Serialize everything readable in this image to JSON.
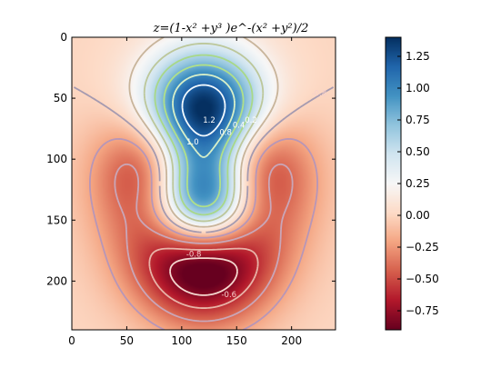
{
  "chart_data": {
    "type": "heatmap",
    "title": "z=(1-x² +y³ )e^-(x² +y²)/2",
    "xlabel": "",
    "ylabel": "",
    "grid": false,
    "x_range": [
      0,
      240
    ],
    "y_range": [
      240,
      0
    ],
    "x_ticks": [
      "0",
      "50",
      "100",
      "150",
      "200"
    ],
    "y_ticks": [
      "0",
      "50",
      "100",
      "150",
      "200"
    ],
    "colormap": "RdBu",
    "colorbar": {
      "range": [
        -0.9,
        1.4
      ],
      "ticks": [
        "1.25",
        "1.00",
        "0.75",
        "0.50",
        "0.25",
        "0.00",
        "−0.25",
        "−0.50",
        "−0.75"
      ],
      "tick_values": [
        1.25,
        1.0,
        0.75,
        0.5,
        0.25,
        0.0,
        -0.25,
        -0.5,
        -0.75
      ]
    },
    "function": "z = (1 - x^2 + y^3) * exp(-(x^2 + y^2)/2), x,y in [-3,3] mapped to 0..240 pixels",
    "contour_levels": [
      -0.8,
      -0.6,
      -0.4,
      -0.2,
      0.0,
      0.2,
      0.4,
      0.6,
      0.8,
      1.0,
      1.2
    ],
    "contour_labels": [
      {
        "text": "1.2",
        "x": 125,
        "y": 70
      },
      {
        "text": "1.0",
        "x": 110,
        "y": 88
      },
      {
        "text": "0.8",
        "x": 140,
        "y": 80
      },
      {
        "text": "0.4",
        "x": 152,
        "y": 74
      },
      {
        "text": "0.2",
        "x": 163,
        "y": 70
      },
      {
        "text": "-0.8",
        "x": 111,
        "y": 180
      },
      {
        "text": "-0.6",
        "x": 143,
        "y": 213
      },
      {
        "text": "-0.8",
        "x": 225,
        "y": 48
      }
    ]
  },
  "colors": {
    "level_-0.8": "#f5d8d0",
    "level_-0.6": "#e8b4a8",
    "level_-0.4": "#c9a6b8",
    "level_-0.2": "#b796b8",
    "level_0.0": "#a59ab0",
    "level_0.2": "#c8b49a",
    "level_0.4": "#bcc79a",
    "level_0.6": "#a8d888",
    "level_0.8": "#b0e088",
    "level_1.0": "#d8f0c8",
    "level_1.2": "#f4fbff"
  }
}
